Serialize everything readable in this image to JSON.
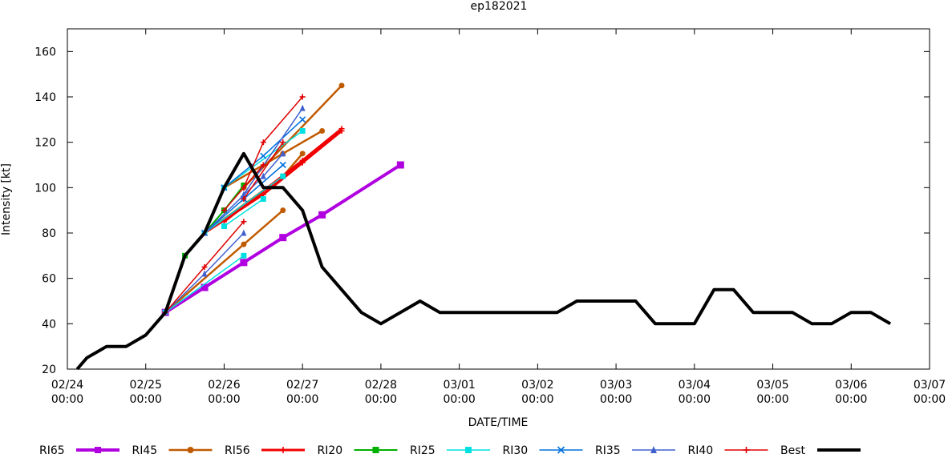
{
  "chart_data": {
    "type": "line",
    "title": "ep182021",
    "xlabel": "DATE/TIME",
    "ylabel": "Intensity [kt]",
    "ylim": [
      20,
      170
    ],
    "xlim": [
      "02/24 00:00",
      "03/07 00:00"
    ],
    "x_ticks": [
      {
        "d": "02/24",
        "t": "00:00"
      },
      {
        "d": "02/25",
        "t": "00:00"
      },
      {
        "d": "02/26",
        "t": "00:00"
      },
      {
        "d": "02/27",
        "t": "00:00"
      },
      {
        "d": "02/28",
        "t": "00:00"
      },
      {
        "d": "03/01",
        "t": "00:00"
      },
      {
        "d": "03/02",
        "t": "00:00"
      },
      {
        "d": "03/03",
        "t": "00:00"
      },
      {
        "d": "03/04",
        "t": "00:00"
      },
      {
        "d": "03/05",
        "t": "00:00"
      },
      {
        "d": "03/06",
        "t": "00:00"
      },
      {
        "d": "03/07",
        "t": "00:00"
      }
    ],
    "y_ticks": [
      20,
      40,
      60,
      80,
      100,
      120,
      140,
      160
    ],
    "grid": false,
    "legend_position": "bottom",
    "series": [
      {
        "name": "RI65",
        "color": "#b000e0",
        "marker": "square",
        "width": 4,
        "segments": [
          [
            [
              "02/25 06:00",
              45
            ],
            [
              "02/25 18:00",
              56
            ],
            [
              "02/26 06:00",
              67
            ],
            [
              "02/26 18:00",
              78
            ],
            [
              "02/27 06:00",
              88
            ],
            [
              "02/28 06:00",
              110
            ]
          ]
        ]
      },
      {
        "name": "RI45",
        "color": "#c05a00",
        "marker": "circle",
        "width": 2.5,
        "segments": [
          [
            [
              "02/25 06:00",
              45
            ],
            [
              "02/26 06:00",
              75
            ],
            [
              "02/26 18:00",
              90
            ]
          ],
          [
            [
              "02/25 12:00",
              70
            ],
            [
              "02/25 18:00",
              80
            ],
            [
              "02/26 00:00",
              100
            ],
            [
              "02/26 18:00",
              115
            ],
            [
              "02/27 06:00",
              125
            ]
          ],
          [
            [
              "02/26 06:00",
              100
            ],
            [
              "02/27 12:00",
              145
            ]
          ],
          [
            [
              "02/25 18:00",
              80
            ],
            [
              "02/26 18:00",
              105
            ],
            [
              "02/27 00:00",
              115
            ]
          ]
        ]
      },
      {
        "name": "RI56",
        "color": "#f00000",
        "marker": "plus",
        "width": 3,
        "segments": [
          [
            [
              "02/25 18:00",
              80
            ],
            [
              "02/26 12:00",
              97
            ],
            [
              "02/27 00:00",
              111
            ],
            [
              "02/27 12:00",
              125
            ]
          ],
          [
            [
              "02/26 00:00",
              85
            ],
            [
              "02/27 00:00",
              112
            ],
            [
              "02/27 12:00",
              126
            ]
          ]
        ]
      },
      {
        "name": "RI20",
        "color": "#00b000",
        "marker": "square",
        "width": 2,
        "segments": [
          [
            [
              "02/25 12:00",
              70
            ],
            [
              "02/25 18:00",
              80
            ],
            [
              "02/26 00:00",
              90
            ],
            [
              "02/26 06:00",
              101
            ]
          ]
        ]
      },
      {
        "name": "RI25",
        "color": "#00e0e0",
        "marker": "square",
        "width": 1.5,
        "segments": [
          [
            [
              "02/25 06:00",
              45
            ],
            [
              "02/26 06:00",
              70
            ]
          ],
          [
            [
              "02/25 18:00",
              80
            ],
            [
              "02/26 18:00",
              105
            ]
          ],
          [
            [
              "02/26 00:00",
              83
            ],
            [
              "02/26 12:00",
              95
            ]
          ],
          [
            [
              "02/26 00:00",
              100
            ],
            [
              "02/27 00:00",
              125
            ]
          ]
        ]
      },
      {
        "name": "RI30",
        "color": "#0070e0",
        "marker": "x",
        "width": 1.5,
        "segments": [
          [
            [
              "02/25 18:00",
              80
            ],
            [
              "02/26 06:00",
              95
            ]
          ],
          [
            [
              "02/26 00:00",
              100
            ],
            [
              "02/26 12:00",
              114
            ],
            [
              "02/27 00:00",
              130
            ]
          ],
          [
            [
              "02/26 06:00",
              95
            ],
            [
              "02/26 18:00",
              110
            ]
          ]
        ]
      },
      {
        "name": "RI35",
        "color": "#4060d0",
        "marker": "triangle",
        "width": 1.5,
        "segments": [
          [
            [
              "02/25 06:00",
              45
            ],
            [
              "02/25 18:00",
              62
            ],
            [
              "02/26 06:00",
              80
            ]
          ],
          [
            [
              "02/25 18:00",
              80
            ],
            [
              "02/26 12:00",
              105
            ],
            [
              "02/26 18:00",
              115
            ]
          ],
          [
            [
              "02/26 06:00",
              97
            ],
            [
              "02/27 00:00",
              135
            ]
          ]
        ]
      },
      {
        "name": "RI40",
        "color": "#e00000",
        "marker": "plus",
        "width": 1.5,
        "segments": [
          [
            [
              "02/25 06:00",
              45
            ],
            [
              "02/25 18:00",
              65
            ],
            [
              "02/26 06:00",
              85
            ]
          ],
          [
            [
              "02/26 00:00",
              90
            ],
            [
              "02/26 12:00",
              110
            ]
          ],
          [
            [
              "02/26 06:00",
              100
            ],
            [
              "02/26 12:00",
              120
            ],
            [
              "02/27 00:00",
              140
            ]
          ],
          [
            [
              "02/26 06:00",
              95
            ],
            [
              "02/26 18:00",
              120
            ]
          ]
        ]
      },
      {
        "name": "Best",
        "color": "#000000",
        "marker": "none",
        "width": 4,
        "segments": [
          [
            [
              "02/24 03:00",
              20
            ],
            [
              "02/24 06:00",
              25
            ],
            [
              "02/24 12:00",
              30
            ],
            [
              "02/24 18:00",
              30
            ],
            [
              "02/25 00:00",
              35
            ],
            [
              "02/25 06:00",
              45
            ],
            [
              "02/25 12:00",
              70
            ],
            [
              "02/25 18:00",
              80
            ],
            [
              "02/26 00:00",
              100
            ],
            [
              "02/26 06:00",
              115
            ],
            [
              "02/26 12:00",
              100
            ],
            [
              "02/26 18:00",
              100
            ],
            [
              "02/27 00:00",
              90
            ],
            [
              "02/27 06:00",
              65
            ],
            [
              "02/27 12:00",
              55
            ],
            [
              "02/27 18:00",
              45
            ],
            [
              "02/28 00:00",
              40
            ],
            [
              "02/28 06:00",
              45
            ],
            [
              "02/28 12:00",
              50
            ],
            [
              "02/28 18:00",
              45
            ],
            [
              "03/01 00:00",
              45
            ],
            [
              "03/01 06:00",
              45
            ],
            [
              "03/01 12:00",
              45
            ],
            [
              "03/01 18:00",
              45
            ],
            [
              "03/02 00:00",
              45
            ],
            [
              "03/02 06:00",
              45
            ],
            [
              "03/02 12:00",
              50
            ],
            [
              "03/02 18:00",
              50
            ],
            [
              "03/03 00:00",
              50
            ],
            [
              "03/03 06:00",
              50
            ],
            [
              "03/03 12:00",
              40
            ],
            [
              "03/03 18:00",
              40
            ],
            [
              "03/04 00:00",
              40
            ],
            [
              "03/04 06:00",
              55
            ],
            [
              "03/04 12:00",
              55
            ],
            [
              "03/04 18:00",
              45
            ],
            [
              "03/05 00:00",
              45
            ],
            [
              "03/05 06:00",
              45
            ],
            [
              "03/05 12:00",
              40
            ],
            [
              "03/05 18:00",
              40
            ],
            [
              "03/06 00:00",
              45
            ],
            [
              "03/06 06:00",
              45
            ],
            [
              "03/06 12:00",
              40
            ]
          ]
        ]
      }
    ]
  }
}
